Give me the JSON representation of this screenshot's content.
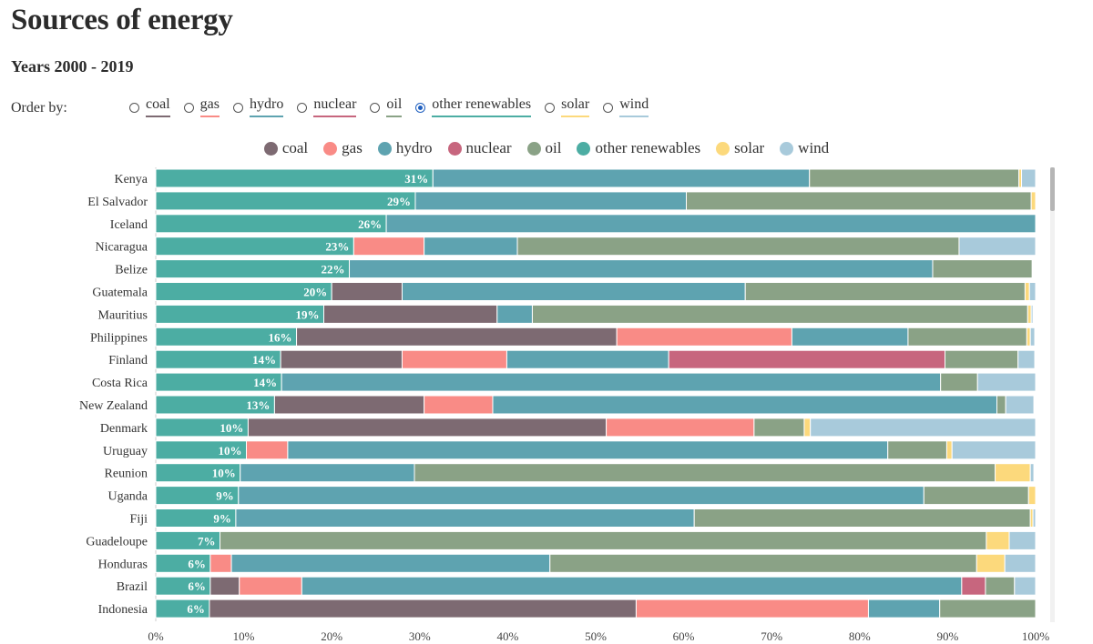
{
  "title": "Sources of energy",
  "subtitle": "Years 2000 - 2019",
  "order_by": {
    "label": "Order by:",
    "selected": "other renewables",
    "options": [
      {
        "key": "coal",
        "label": "coal"
      },
      {
        "key": "gas",
        "label": "gas"
      },
      {
        "key": "hydro",
        "label": "hydro"
      },
      {
        "key": "nuclear",
        "label": "nuclear"
      },
      {
        "key": "oil",
        "label": "oil"
      },
      {
        "key": "other_renewables",
        "label": "other renewables"
      },
      {
        "key": "solar",
        "label": "solar"
      },
      {
        "key": "wind",
        "label": "wind"
      }
    ]
  },
  "colors": {
    "coal": "#7d6a72",
    "gas": "#f98b86",
    "hydro": "#5ea3b0",
    "nuclear": "#c7667e",
    "oil": "#8aa286",
    "other_renewables": "#4cada3",
    "solar": "#fcd97c",
    "wind": "#a8cadb"
  },
  "chart_data": {
    "type": "bar",
    "orientation": "horizontal",
    "stacked": true,
    "xlim": [
      0,
      100
    ],
    "x_ticks": [
      "0%",
      "10%",
      "20%",
      "30%",
      "40%",
      "50%",
      "60%",
      "70%",
      "80%",
      "90%",
      "100%"
    ],
    "legend_position": "top-center",
    "categories": [
      "Kenya",
      "El Salvador",
      "Iceland",
      "Nicaragua",
      "Belize",
      "Guatemala",
      "Mauritius",
      "Philippines",
      "Finland",
      "Costa Rica",
      "New Zealand",
      "Denmark",
      "Uruguay",
      "Reunion",
      "Uganda",
      "Fiji",
      "Guadeloupe",
      "Honduras",
      "Brazil",
      "Indonesia"
    ],
    "data_labels": [
      "31%",
      "29%",
      "26%",
      "23%",
      "22%",
      "20%",
      "19%",
      "16%",
      "14%",
      "14%",
      "13%",
      "10%",
      "10%",
      "10%",
      "9%",
      "9%",
      "7%",
      "6%",
      "6%",
      "6%"
    ],
    "series": [
      {
        "name": "other renewables",
        "key": "other_renewables",
        "values": [
          31.5,
          29.5,
          26.2,
          22.5,
          22.0,
          20.0,
          19.1,
          16.0,
          14.2,
          14.3,
          13.5,
          10.5,
          10.3,
          9.6,
          9.4,
          9.1,
          7.3,
          6.2,
          6.2,
          6.1
        ]
      },
      {
        "name": "coal",
        "key": "coal",
        "values": [
          0,
          0,
          0,
          0,
          0,
          8.0,
          19.7,
          36.4,
          13.8,
          0,
          17.0,
          40.7,
          0,
          0,
          0,
          0,
          0,
          0,
          3.3,
          48.5
        ]
      },
      {
        "name": "gas",
        "key": "gas",
        "values": [
          0,
          0,
          0,
          8.0,
          0,
          0,
          0,
          19.9,
          11.9,
          0,
          7.8,
          16.8,
          4.7,
          0,
          0,
          0,
          0,
          2.4,
          7.1,
          26.4
        ]
      },
      {
        "name": "hydro",
        "key": "hydro",
        "values": [
          42.8,
          30.8,
          73.8,
          10.6,
          66.3,
          39.0,
          4.0,
          13.2,
          18.4,
          74.9,
          57.3,
          0,
          68.2,
          19.8,
          77.9,
          52.1,
          0,
          36.2,
          75.0,
          8.1
        ]
      },
      {
        "name": "nuclear",
        "key": "nuclear",
        "values": [
          0,
          0,
          0,
          0,
          0,
          0,
          0,
          0,
          31.4,
          0,
          0,
          0,
          0,
          0,
          0,
          0,
          0,
          0,
          2.7,
          0
        ]
      },
      {
        "name": "oil",
        "key": "oil",
        "values": [
          23.8,
          39.2,
          0,
          50.2,
          11.3,
          31.8,
          56.3,
          13.5,
          8.3,
          4.2,
          1.0,
          5.7,
          6.7,
          66.0,
          11.9,
          38.2,
          87.1,
          48.5,
          3.3,
          10.9
        ]
      },
      {
        "name": "solar",
        "key": "solar",
        "values": [
          0.3,
          0.5,
          0,
          0,
          0,
          0.5,
          0.4,
          0.4,
          0,
          0,
          0,
          0.7,
          0.6,
          4.0,
          0.8,
          0.3,
          2.6,
          3.2,
          0,
          0
        ]
      },
      {
        "name": "wind",
        "key": "wind",
        "values": [
          1.6,
          0,
          0,
          8.7,
          0,
          0.7,
          0.2,
          0.5,
          1.9,
          6.6,
          3.2,
          25.6,
          9.5,
          0.4,
          0,
          0.3,
          3.0,
          3.5,
          2.4,
          0
        ]
      }
    ]
  }
}
